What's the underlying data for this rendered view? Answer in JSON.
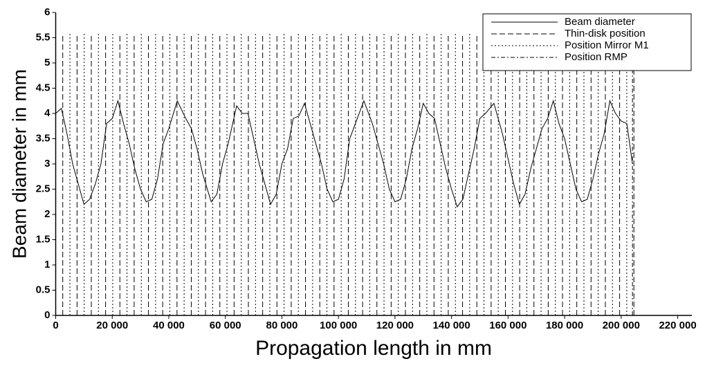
{
  "chart_data": {
    "type": "line",
    "xlabel": "Propagation length in mm",
    "ylabel": "Beam diameter in mm",
    "xlim": [
      0,
      225000
    ],
    "ylim": [
      0,
      6
    ],
    "xticks": [
      0,
      {
        "value": 20000,
        "label": "20 000"
      },
      {
        "value": 40000,
        "label": "40 000"
      },
      {
        "value": 60000,
        "label": "60 000"
      },
      {
        "value": 80000,
        "label": "80 000"
      },
      {
        "value": 100000,
        "label": "100 000"
      },
      {
        "value": 120000,
        "label": "120 000"
      },
      {
        "value": 140000,
        "label": "140 000"
      },
      {
        "value": 160000,
        "label": "160 000"
      },
      {
        "value": 180000,
        "label": "180 000"
      },
      {
        "value": 200000,
        "label": "200 000"
      },
      {
        "value": 220000,
        "label": "220 000"
      }
    ],
    "yticks": [
      0,
      0.5,
      1,
      1.5,
      2,
      2.5,
      3,
      3.5,
      4,
      4.5,
      5,
      5.5,
      6
    ],
    "legend": "upper right",
    "series": [
      {
        "name": "Beam diameter",
        "color": "#000000",
        "x": [
          0,
          2000,
          4000,
          6000,
          8000,
          10000,
          12000,
          14000,
          16000,
          18000,
          20000,
          22000,
          24000,
          26000,
          28000,
          30000,
          32000,
          34000,
          36000,
          38000,
          40000,
          43000,
          46000,
          48000,
          50000,
          52000,
          55000,
          57000,
          59000,
          61000,
          64000,
          66000,
          68000,
          70000,
          72000,
          74000,
          76000,
          78000,
          80000,
          82000,
          84000,
          86000,
          88000,
          90000,
          92000,
          94000,
          96000,
          98000,
          100000,
          102000,
          104000,
          106000,
          109000,
          112000,
          114000,
          116000,
          118000,
          120000,
          122000,
          124000,
          126000,
          128000,
          130000,
          132000,
          134000,
          136000,
          138000,
          140000,
          142000,
          144000,
          146000,
          148000,
          150000,
          152000,
          155000,
          158000,
          160000,
          162000,
          164000,
          166000,
          168000,
          170000,
          172000,
          174000,
          176000,
          178000,
          180000,
          182000,
          184000,
          186000,
          188000,
          190000,
          192000,
          194000,
          196000,
          198000,
          200000,
          202000,
          204000
        ],
        "values": [
          4.0,
          4.1,
          3.6,
          3.0,
          2.6,
          2.2,
          2.3,
          2.6,
          3.0,
          3.8,
          3.9,
          4.25,
          3.8,
          3.4,
          2.9,
          2.5,
          2.25,
          2.3,
          2.7,
          3.4,
          3.7,
          4.25,
          3.9,
          3.7,
          3.3,
          2.8,
          2.25,
          2.4,
          3.0,
          3.4,
          4.15,
          4.0,
          4.0,
          3.5,
          3.0,
          2.6,
          2.2,
          2.4,
          3.0,
          3.3,
          3.9,
          3.95,
          4.2,
          3.8,
          3.4,
          3.0,
          2.5,
          2.25,
          2.3,
          2.7,
          3.5,
          3.8,
          4.25,
          3.8,
          3.4,
          3.0,
          2.5,
          2.25,
          2.3,
          2.7,
          3.3,
          3.7,
          4.2,
          4.0,
          3.9,
          3.4,
          2.9,
          2.5,
          2.15,
          2.3,
          2.8,
          3.3,
          3.9,
          4.0,
          4.2,
          3.6,
          3.1,
          2.6,
          2.2,
          2.4,
          2.9,
          3.3,
          3.7,
          3.9,
          4.25,
          3.8,
          3.5,
          3.0,
          2.5,
          2.25,
          2.3,
          2.7,
          3.2,
          3.6,
          4.25,
          4.0,
          3.85,
          3.8,
          3.0
        ]
      }
    ],
    "markers": [
      {
        "name": "Thin-disk position",
        "color": "#000000",
        "dash": "8 4",
        "x": [
          2500,
          7550,
          12600,
          17650,
          22700,
          27750,
          32800,
          37850,
          42900,
          47950,
          53000,
          58050,
          63100,
          68150,
          73200,
          78250,
          83300,
          88350,
          93400,
          98450,
          103500,
          108550,
          113600,
          118650,
          123700,
          128750,
          133800,
          138850,
          143900,
          148950,
          154000,
          159050,
          164100,
          169150,
          174200,
          179250,
          184300,
          189350,
          194400,
          199450,
          204500
        ]
      },
      {
        "name": "Position Mirror M1",
        "color": "#000000",
        "dash": "2 3",
        "x": [
          5025,
          10075,
          15125,
          20175,
          25225,
          30275,
          35325,
          40375,
          45425,
          50475,
          55525,
          60575,
          65625,
          70675,
          75725,
          80775,
          85825,
          90875,
          95925,
          100975,
          106025,
          111075,
          116125,
          121175,
          126225,
          131275,
          136325,
          141375,
          146425,
          151475,
          156525,
          161575,
          166625,
          171675,
          176725,
          181775,
          186825,
          191875,
          196925,
          201975
        ]
      },
      {
        "name": "Position RMP",
        "color": "#000000",
        "dash": "6 3 2 3",
        "x": [
          204000
        ]
      }
    ]
  }
}
